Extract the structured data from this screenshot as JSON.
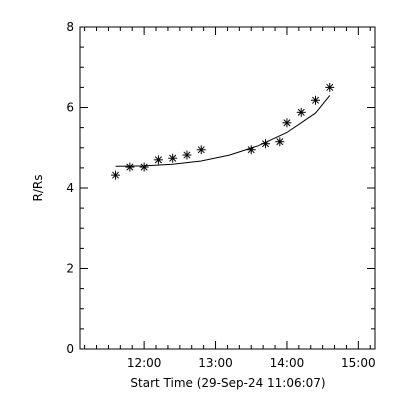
{
  "chart_data": {
    "type": "scatter",
    "xlabel": "Start Time (29-Sep-24 11:06:07)",
    "ylabel": "R/Rs",
    "xlim": [
      "11:06:07",
      "15:14"
    ],
    "ylim": [
      0,
      8
    ],
    "x_tick_labels": [
      "12:00",
      "13:00",
      "14:00",
      "15:00"
    ],
    "x_ticks": [
      "12:00",
      "13:00",
      "14:00",
      "15:00"
    ],
    "y_ticks": [
      0,
      2,
      4,
      6,
      8
    ],
    "y_tick_labels": [
      "0",
      "2",
      "4",
      "6",
      "8"
    ],
    "grid": false,
    "series": [
      {
        "kind": "points",
        "marker": "asterisk",
        "x": [
          "11:36",
          "11:48",
          "12:00",
          "12:12",
          "12:24",
          "12:36",
          "12:48",
          "13:30",
          "13:42",
          "13:54",
          "14:00",
          "14:12",
          "14:24",
          "14:36"
        ],
        "y": [
          4.32,
          4.52,
          4.52,
          4.7,
          4.74,
          4.82,
          4.95,
          4.95,
          5.1,
          5.15,
          5.62,
          5.88,
          6.18,
          6.5
        ]
      },
      {
        "kind": "fit",
        "style": "line",
        "x": [
          "11:36",
          "12:00",
          "12:24",
          "12:48",
          "13:12",
          "13:36",
          "14:00",
          "14:24",
          "14:36"
        ],
        "y": [
          4.54,
          4.55,
          4.59,
          4.67,
          4.82,
          5.05,
          5.38,
          5.86,
          6.3
        ]
      }
    ]
  }
}
